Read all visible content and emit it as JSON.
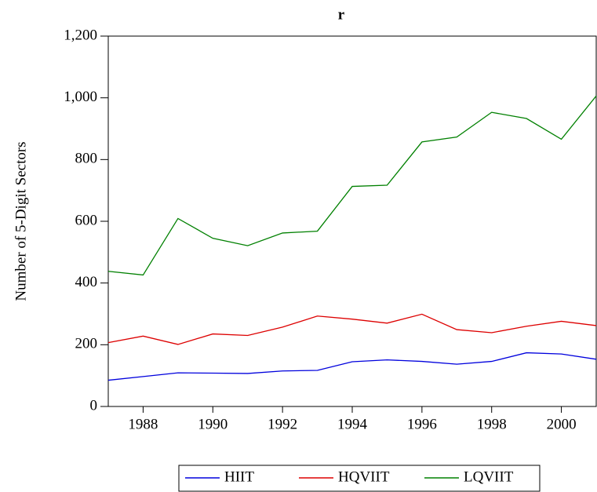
{
  "chart_data": {
    "type": "line",
    "title": "r",
    "ylabel": "Number of 5-Digit Sectors",
    "x": [
      1987,
      1988,
      1989,
      1990,
      1991,
      1992,
      1993,
      1994,
      1995,
      1996,
      1997,
      1998,
      1999,
      2000,
      2001
    ],
    "series": [
      {
        "name": "HIIT",
        "color": "#0000dd",
        "values": [
          85,
          97,
          109,
          108,
          107,
          115,
          117,
          145,
          151,
          146,
          137,
          146,
          174,
          170,
          153
        ]
      },
      {
        "name": "HQVIIT",
        "color": "#dd0000",
        "values": [
          207,
          228,
          201,
          235,
          230,
          257,
          293,
          283,
          270,
          299,
          249,
          239,
          260,
          276,
          262
        ]
      },
      {
        "name": "LQVIIT",
        "color": "#008000",
        "values": [
          438,
          426,
          609,
          545,
          521,
          562,
          568,
          713,
          717,
          857,
          873,
          953,
          933,
          866,
          1006
        ]
      }
    ],
    "xlim": [
      1987,
      2001
    ],
    "xticks": [
      1988,
      1990,
      1992,
      1994,
      1996,
      1998,
      2000
    ],
    "ylim": [
      0,
      1200
    ],
    "yticks": [
      0,
      200,
      400,
      600,
      800,
      {
        "value": 1000,
        "label": "1,000"
      },
      {
        "value": 1200,
        "label": "1,200"
      }
    ],
    "legend": "bottom"
  }
}
